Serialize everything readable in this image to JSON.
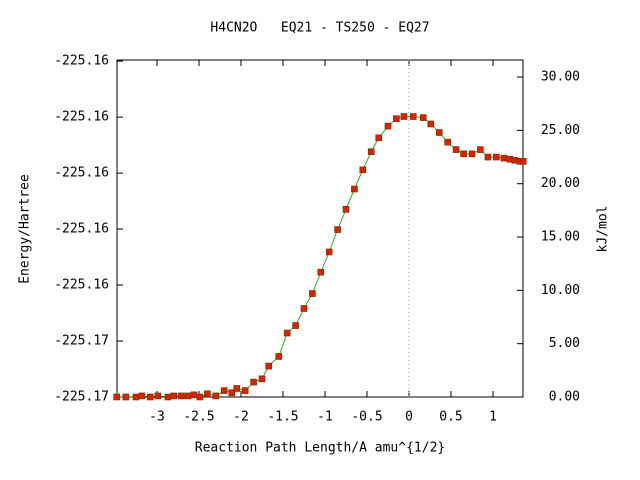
{
  "chart_data": {
    "type": "line",
    "title": "H4CN2O   EQ21 - TS250 - EQ27",
    "xlabel": "Reaction Path Length/A amu^{1/2}",
    "ylabel": "Energy/Hartree",
    "y2label": "kJ/mol",
    "xlim": [
      -3.476,
      1.357
    ],
    "xticks": [
      -3,
      -2.5,
      -2,
      -1.5,
      -1,
      -0.5,
      0,
      0.5,
      1
    ],
    "ylim": [
      -225.17,
      -225.15796
    ],
    "yticks": [
      {
        "value": -225.17,
        "label": "-225.17"
      },
      {
        "value": -225.168,
        "label": "-225.17"
      },
      {
        "value": -225.166,
        "label": "-225.16"
      },
      {
        "value": -225.164,
        "label": "-225.16"
      },
      {
        "value": -225.162,
        "label": "-225.16"
      },
      {
        "value": -225.16,
        "label": "-225.16"
      },
      {
        "value": -225.158,
        "label": "-225.16"
      }
    ],
    "y2lim": [
      0,
      31.6
    ],
    "y2ticks": [
      {
        "value": 0,
        "label": "0.00"
      },
      {
        "value": 5,
        "label": "5.00"
      },
      {
        "value": 10,
        "label": "10.00"
      },
      {
        "value": 15,
        "label": "15.00"
      },
      {
        "value": 20,
        "label": "20.00"
      },
      {
        "value": 25,
        "label": "25.00"
      },
      {
        "value": 30,
        "label": "30.00"
      }
    ],
    "ts_marker_x": 0,
    "x": [
      -3.48,
      -3.37,
      -3.25,
      -3.18,
      -3.08,
      -2.99,
      -2.87,
      -2.8,
      -2.71,
      -2.63,
      -2.56,
      -2.49,
      -2.4,
      -2.3,
      -2.2,
      -2.11,
      -2.05,
      -1.95,
      -1.85,
      -1.75,
      -1.67,
      -1.55,
      -1.45,
      -1.35,
      -1.25,
      -1.15,
      -1.05,
      -0.95,
      -0.85,
      -0.75,
      -0.65,
      -0.55,
      -0.45,
      -0.36,
      -0.25,
      -0.15,
      -0.06,
      0.05,
      0.17,
      0.26,
      0.36,
      0.46,
      0.56,
      0.65,
      0.75,
      0.85,
      0.94,
      1.04,
      1.13,
      1.2,
      1.26,
      1.32,
      1.36
    ],
    "series": [
      {
        "axis": "y2",
        "line_color": "#00a000",
        "color": "#dd2200",
        "values": [
          0,
          0,
          0,
          0.1,
          0,
          0.1,
          0,
          0.1,
          0.1,
          0.1,
          0.2,
          0,
          0.3,
          0.1,
          0.6,
          0.4,
          0.8,
          0.6,
          1.4,
          1.7,
          2.9,
          3.8,
          6.0,
          6.7,
          8.3,
          9.7,
          11.7,
          13.6,
          15.7,
          17.6,
          19.5,
          21.3,
          23.0,
          24.3,
          25.4,
          26.1,
          26.3,
          26.3,
          26.2,
          25.6,
          24.8,
          23.9,
          23.2,
          22.8,
          22.8,
          23.2,
          22.5,
          22.5,
          22.4,
          22.3,
          22.2,
          22.1,
          22.1
        ]
      }
    ]
  }
}
